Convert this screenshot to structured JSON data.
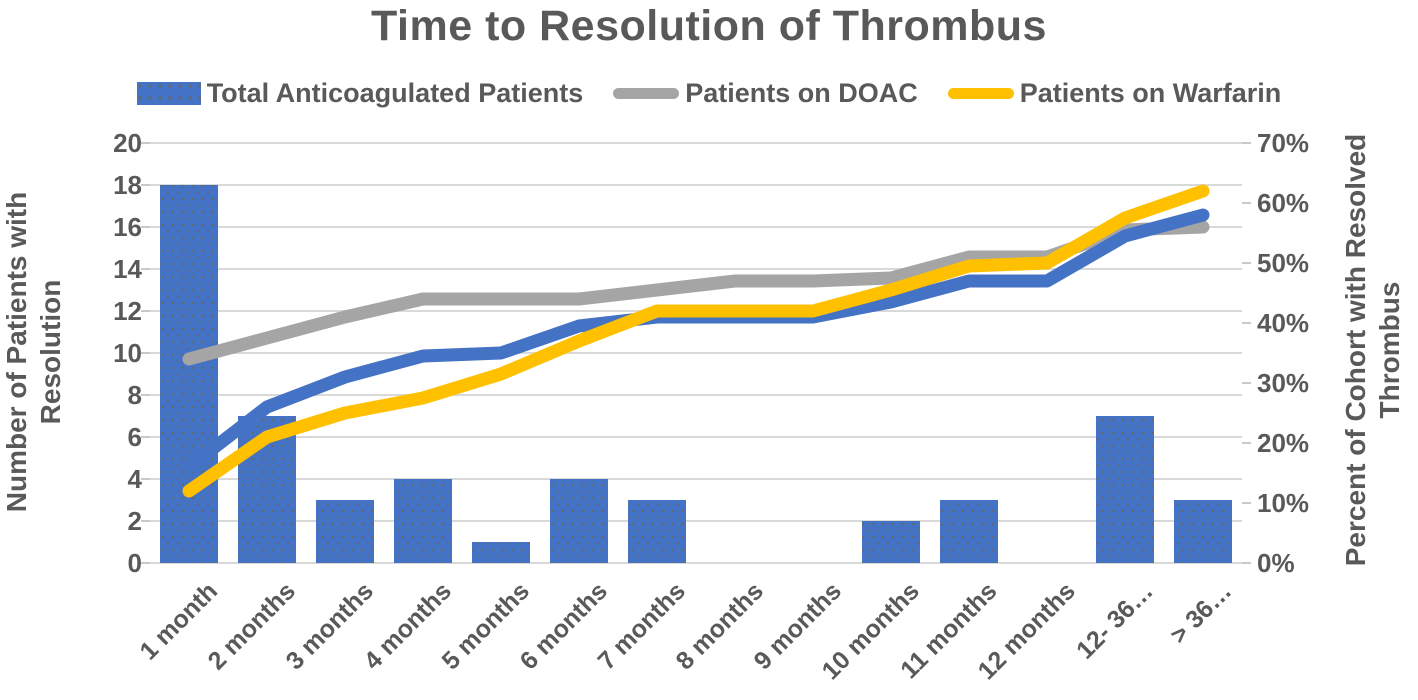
{
  "chart_data": {
    "type": "combo-bar-line",
    "title": "Time to Resolution of Thrombus",
    "categories": [
      "1 month",
      "2 months",
      "3 months",
      "4 months",
      "5 months",
      "6 months",
      "7 months",
      "8 months",
      "9 months",
      "10 months",
      "11 months",
      "12 months",
      "12- 36…",
      "> 36…"
    ],
    "bars": {
      "name": "Total Anticoagulated Patients",
      "axis": "left",
      "color": "#4472C4",
      "values": [
        18,
        7,
        3,
        4,
        1,
        4,
        3,
        0,
        0,
        2,
        3,
        0,
        7,
        3
      ]
    },
    "lines": [
      {
        "name": "Patients on DOAC",
        "axis": "right",
        "color": "#A5A5A5",
        "values_pct": [
          34,
          37.5,
          41,
          44,
          44,
          44,
          45.5,
          47,
          47,
          47.5,
          51,
          51,
          55.5,
          56
        ]
      },
      {
        "name": "Total Anticoagulated Patients",
        "axis": "right",
        "color": "#4472C4",
        "values_pct": [
          16,
          26,
          31,
          34.5,
          35,
          39.5,
          41,
          41,
          41,
          43.5,
          47,
          47,
          54.5,
          58
        ]
      },
      {
        "name": "Patients on Warfarin",
        "axis": "right",
        "color": "#FFC000",
        "values_pct": [
          12,
          21,
          25,
          27.5,
          31.5,
          37,
          42,
          42,
          42,
          45.5,
          49.5,
          50,
          57.5,
          62
        ]
      }
    ],
    "left_axis": {
      "title_line1": "Number of Patients with",
      "title_line2": "Resolution",
      "min": 0,
      "max": 20,
      "tick_step": 2,
      "ticks": [
        "0",
        "2",
        "4",
        "6",
        "8",
        "10",
        "12",
        "14",
        "16",
        "18",
        "20"
      ]
    },
    "right_axis": {
      "title_line1": "Percent of Cohort with Resolved",
      "title_line2": "Thrombus",
      "min": 0,
      "max": 70,
      "tick_step": 10,
      "ticks": [
        "0%",
        "10%",
        "20%",
        "30%",
        "40%",
        "50%",
        "60%",
        "70%"
      ]
    },
    "gridlines": true,
    "legend_position": "top"
  },
  "legend": {
    "items": [
      {
        "label": "Total Anticoagulated Patients",
        "swatch": "bar",
        "color": "#4472C4"
      },
      {
        "label": "Patients on DOAC",
        "swatch": "line",
        "color": "#A5A5A5"
      },
      {
        "label": "Patients on Warfarin",
        "swatch": "line",
        "color": "#FFC000"
      }
    ]
  },
  "colors": {
    "bar_blue": "#4472C4",
    "doac_gray": "#A5A5A5",
    "warfarin_yellow": "#FFC000",
    "text": "#595959",
    "gridline": "#D9D9D9",
    "tick_mark": "#C9C9C9"
  }
}
